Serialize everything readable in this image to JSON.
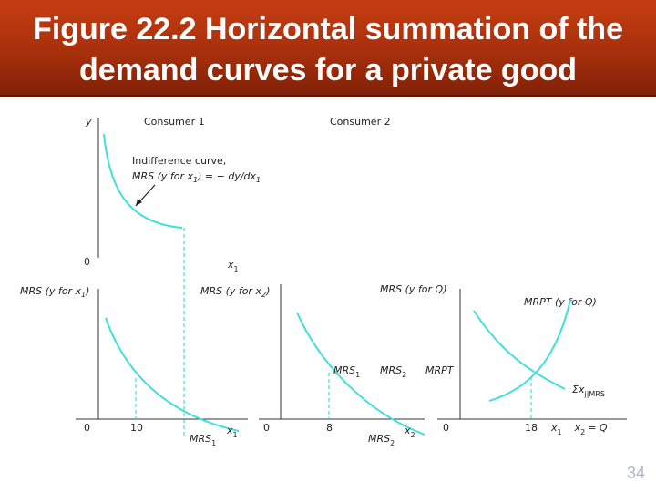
{
  "title": {
    "line1": "Figure 22.2 Horizontal summation of the",
    "line2": "demand curves for a private good"
  },
  "slide_number": "34",
  "colors": {
    "title_bg": "#b3330c",
    "curve": "#3fe0dc",
    "axis": "#333333"
  },
  "top_panel": {
    "y_axis": "y",
    "x_axis": "x",
    "x_axis_sub": "1",
    "origin": "0",
    "consumer1_label": "Consumer 1",
    "consumer2_label": "Consumer 2",
    "indiff_line1": "Indifference curve,",
    "indiff_line2_a": "MRS (y for x",
    "indiff_line2_sub": "1",
    "indiff_line2_b": ") = − dy/dx",
    "indiff_line2_sub2": "1"
  },
  "panel1": {
    "y_label_a": "MRS (y for x",
    "y_label_sub": "1",
    "y_label_b": ")",
    "origin": "0",
    "tick": "10",
    "x_label": "x",
    "x_label_sub": "1",
    "curve_label": "MRS",
    "curve_label_sub": "1"
  },
  "panel2": {
    "y_label_a": "MRS (y for x",
    "y_label_sub": "2",
    "y_label_b": ")",
    "origin": "0",
    "tick": "8",
    "x_label": "x",
    "x_label_sub": "2",
    "curve_label": "MRS",
    "curve_label_sub": "2"
  },
  "panel3": {
    "y_label_mrs": "MRS (y for Q)",
    "y_label_mrpt": "MRPT (y for Q)",
    "origin": "0",
    "tick": "18",
    "x_label_a": "x",
    "x_label_sub1": "1",
    "x_label_b": "x",
    "x_label_sub2": "2",
    "x_label_c": "= Q",
    "label_mrs1": "MRS",
    "label_mrs1_sub": "1",
    "label_mrs2": "MRS",
    "label_mrs2_sub": "2",
    "label_mrpt": "MRPT",
    "sum_label": "Σx",
    "sum_label_sub": "j|MRS"
  }
}
